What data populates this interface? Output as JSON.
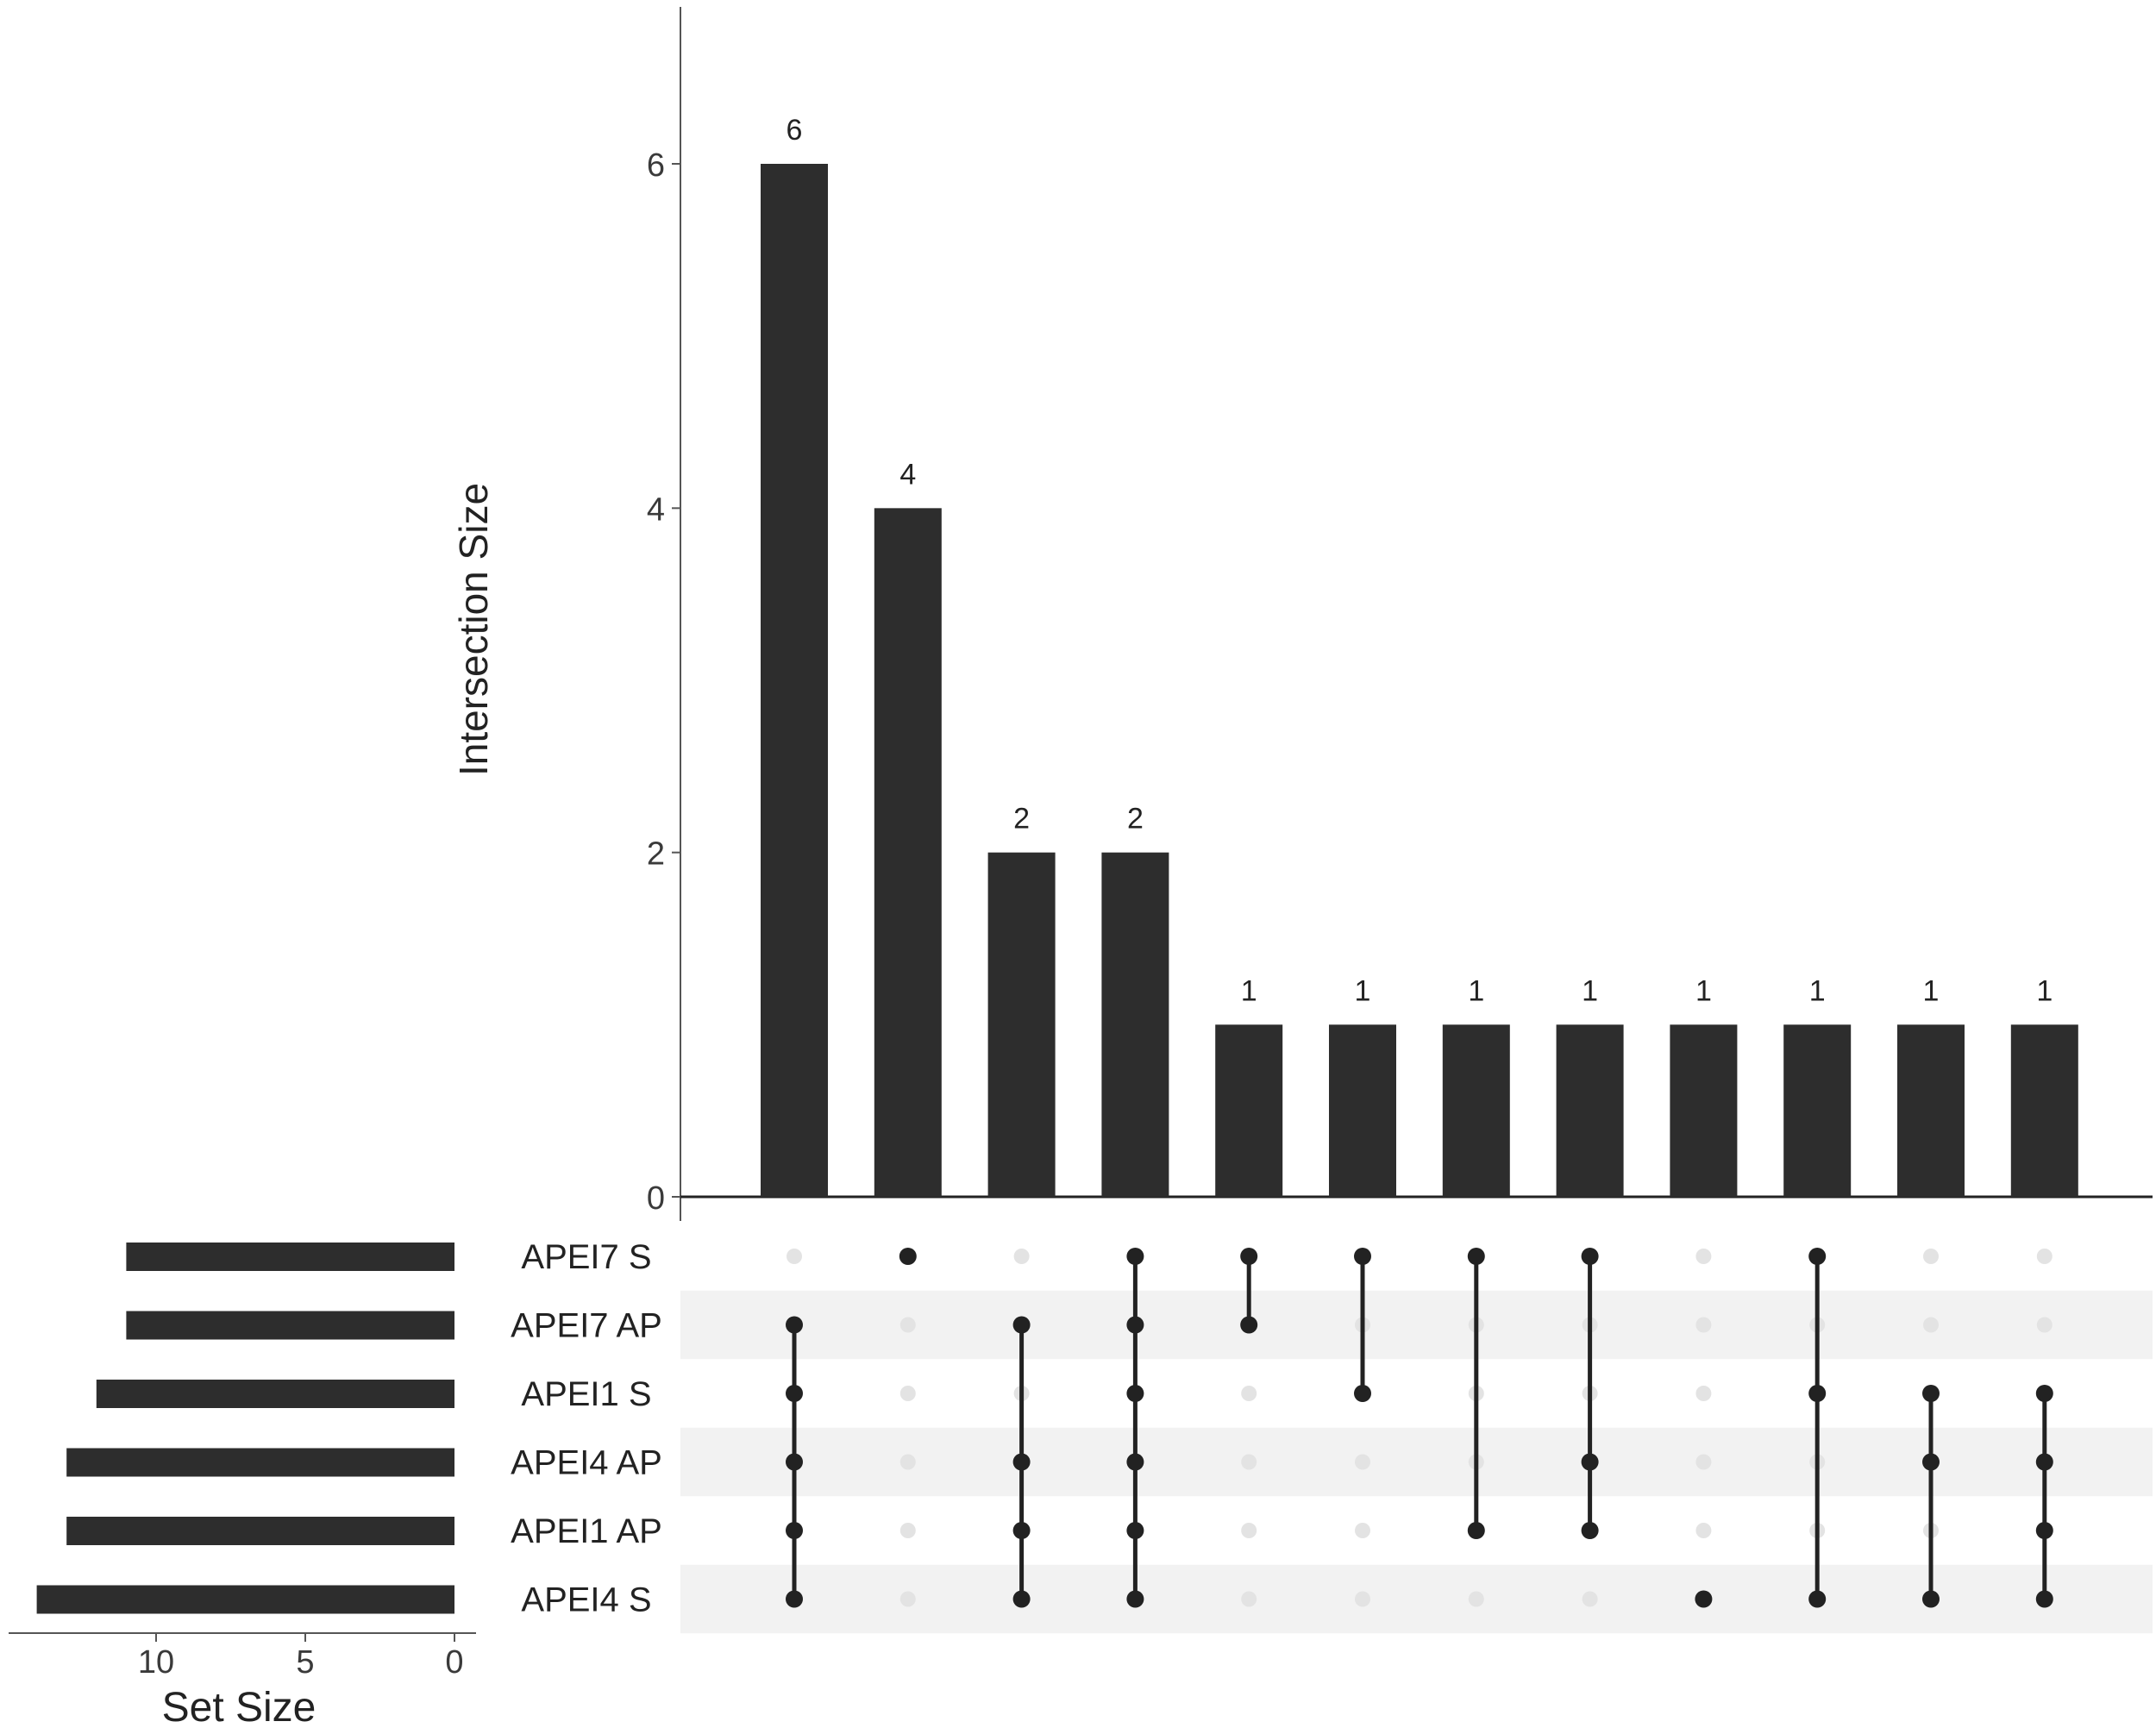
{
  "chart_data": {
    "type": "upset",
    "main_bars": {
      "type": "bar",
      "ylabel": "Intersection Size",
      "ylim": [
        0,
        7
      ],
      "y_ticks": [
        0,
        2,
        4,
        6
      ],
      "values": [
        6,
        4,
        2,
        2,
        1,
        1,
        1,
        1,
        1,
        1,
        1,
        1
      ],
      "data_labels": [
        "6",
        "4",
        "2",
        "2",
        "1",
        "1",
        "1",
        "1",
        "1",
        "1",
        "1",
        "1"
      ]
    },
    "sets": [
      "APEI7 S",
      "APEI7 AP",
      "APEI1 S",
      "APEI4 AP",
      "APEI1 AP",
      "APEI4 S"
    ],
    "set_sizes": {
      "xlabel": "Set Size",
      "x_ticks": [
        10,
        5,
        0
      ],
      "xlim": [
        0,
        14.5
      ],
      "values": [
        11,
        11,
        12,
        13,
        13,
        14
      ]
    },
    "intersections": [
      [
        "APEI7 AP",
        "APEI1 S",
        "APEI4 AP",
        "APEI1 AP",
        "APEI4 S"
      ],
      [
        "APEI7 S"
      ],
      [
        "APEI7 AP",
        "APEI4 AP",
        "APEI1 AP",
        "APEI4 S"
      ],
      [
        "APEI7 S",
        "APEI7 AP",
        "APEI1 S",
        "APEI4 AP",
        "APEI1 AP",
        "APEI4 S"
      ],
      [
        "APEI7 S",
        "APEI7 AP"
      ],
      [
        "APEI7 S",
        "APEI1 S"
      ],
      [
        "APEI7 S",
        "APEI1 AP"
      ],
      [
        "APEI7 S",
        "APEI4 AP",
        "APEI1 AP"
      ],
      [
        "APEI4 S"
      ],
      [
        "APEI7 S",
        "APEI1 S",
        "APEI4 S"
      ],
      [
        "APEI1 S",
        "APEI4 AP",
        "APEI4 S"
      ],
      [
        "APEI1 S",
        "APEI4 AP",
        "APEI1 AP",
        "APEI4 S"
      ]
    ],
    "colors": {
      "bar": "#2d2d2d",
      "dot_active": "#222222",
      "dot_inactive": "#e3e3e3",
      "row_shade": "#f2f2f2",
      "axis": "#222222",
      "text": "#222222",
      "tick_text": "#3a3a3a"
    }
  }
}
